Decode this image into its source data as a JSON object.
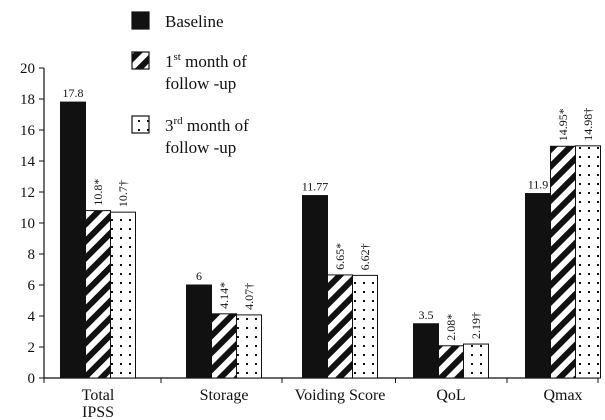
{
  "chart_data": {
    "type": "bar",
    "categories": [
      "Total IPSS",
      "Storage",
      "Voiding Score",
      "QoL",
      "Qmax"
    ],
    "series": [
      {
        "name": "Baseline",
        "pattern": "solid",
        "values": [
          17.8,
          6,
          11.77,
          3.5,
          11.9
        ],
        "labels": [
          "17.8",
          "6",
          "11.77",
          "3.5",
          "11.9"
        ]
      },
      {
        "name": "1st month of follow -up",
        "name_parts": [
          "1",
          "st",
          " month of",
          "follow -up"
        ],
        "pattern": "diagonal-stripes",
        "values": [
          10.8,
          4.14,
          6.65,
          2.08,
          14.95
        ],
        "labels": [
          "10.8*",
          "4.14*",
          "6.65*",
          "2.08*",
          "14.95*"
        ]
      },
      {
        "name": "3rd month of follow -up",
        "name_parts": [
          "3",
          "rd",
          " month of",
          "follow -up"
        ],
        "pattern": "dots",
        "values": [
          10.7,
          4.07,
          6.62,
          2.19,
          14.98
        ],
        "labels": [
          "10.7†",
          "4.07†",
          "6.62†",
          "2.19†",
          "14.98†"
        ]
      }
    ],
    "ylim": [
      0,
      20
    ],
    "yticks": [
      0,
      2,
      4,
      6,
      8,
      10,
      12,
      14,
      16,
      18,
      20
    ],
    "title": "",
    "xlabel": "",
    "ylabel": "",
    "legend_position": "top",
    "grid": false,
    "colors": {
      "bar_fill": "#111111",
      "bar_bg": "#ffffff",
      "stroke": "#111111"
    }
  }
}
